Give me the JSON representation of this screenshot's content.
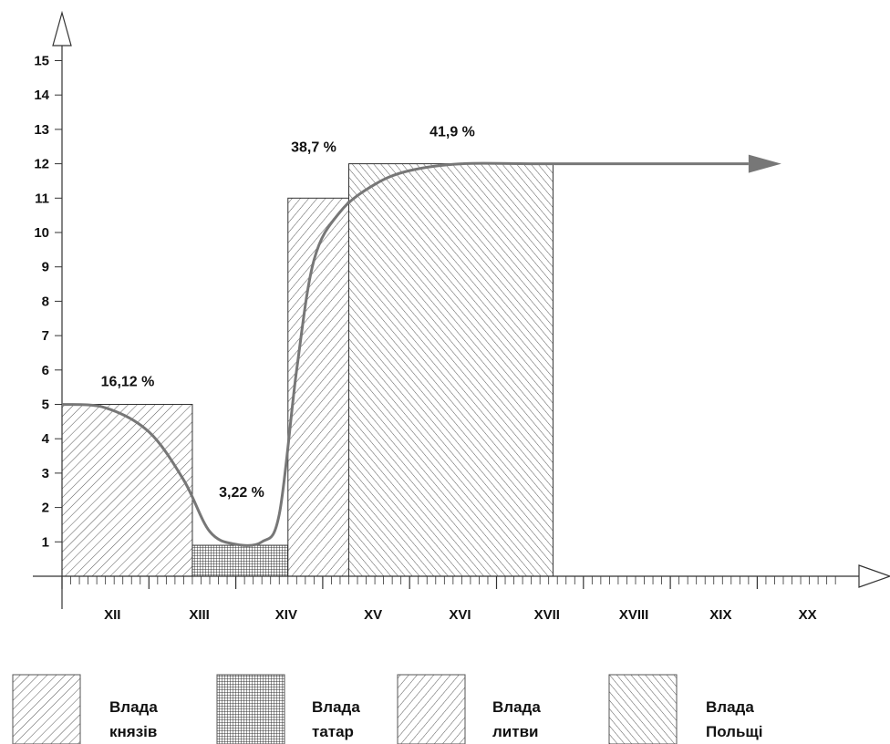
{
  "chart_data": {
    "type": "bar",
    "ylim": [
      0,
      15
    ],
    "yticks": [
      "1",
      "2",
      "3",
      "4",
      "5",
      "6",
      "7",
      "8",
      "9",
      "10",
      "11",
      "12",
      "13",
      "14",
      "15"
    ],
    "centuries": [
      "XII",
      "XIII",
      "XIV",
      "XV",
      "XVI",
      "XVII",
      "XVIII",
      "XIX",
      "XX"
    ],
    "bars": [
      {
        "key": "knyaz",
        "start": 0,
        "end": 1.5,
        "value": 5,
        "label": "16,12 %"
      },
      {
        "key": "tatar",
        "start": 1.5,
        "end": 2.6,
        "value": 0.9,
        "label": "3,22 %"
      },
      {
        "key": "lytva",
        "start": 2.6,
        "end": 3.3,
        "value": 11,
        "label": "38,7 %"
      },
      {
        "key": "polshcha",
        "start": 3.3,
        "end": 5.65,
        "value": 12,
        "label": "41,9 %"
      }
    ],
    "curve": [
      [
        0,
        5
      ],
      [
        0.5,
        4.9
      ],
      [
        1.0,
        4.2
      ],
      [
        1.4,
        2.8
      ],
      [
        1.7,
        1.3
      ],
      [
        2.0,
        0.93
      ],
      [
        2.3,
        1.0
      ],
      [
        2.5,
        1.8
      ],
      [
        2.7,
        6.0
      ],
      [
        2.9,
        9.2
      ],
      [
        3.2,
        10.6
      ],
      [
        3.6,
        11.4
      ],
      [
        4.0,
        11.8
      ],
      [
        4.6,
        12.0
      ],
      [
        5.5,
        12.0
      ],
      [
        7.9,
        12.0
      ]
    ],
    "legend": [
      {
        "key": "knyaz",
        "line1": "Влада",
        "line2": "князів"
      },
      {
        "key": "tatar",
        "line1": "Влада",
        "line2": "татар"
      },
      {
        "key": "lytva",
        "line1": "Влада",
        "line2": "литви"
      },
      {
        "key": "polshcha",
        "line1": "Влада",
        "line2": "Польщі"
      }
    ]
  }
}
